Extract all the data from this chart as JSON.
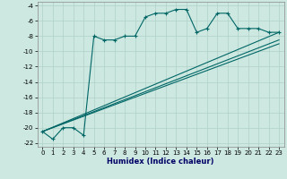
{
  "xlabel": "Humidex (Indice chaleur)",
  "background_color": "#cce8e0",
  "line_color": "#006666",
  "xlim": [
    -0.5,
    23.5
  ],
  "ylim": [
    -22.5,
    -3.5
  ],
  "xticks": [
    0,
    1,
    2,
    3,
    4,
    5,
    6,
    7,
    8,
    9,
    10,
    11,
    12,
    13,
    14,
    15,
    16,
    17,
    18,
    19,
    20,
    21,
    22,
    23
  ],
  "yticks": [
    -22,
    -20,
    -18,
    -16,
    -14,
    -12,
    -10,
    -8,
    -6,
    -4
  ],
  "main_x": [
    0,
    1,
    2,
    3,
    4,
    5,
    6,
    7,
    8,
    9,
    10,
    11,
    12,
    13,
    14,
    15,
    16,
    17,
    18,
    19,
    20,
    21,
    22,
    23
  ],
  "main_y": [
    -20.5,
    -21.5,
    -20,
    -20,
    -21,
    -8,
    -8.5,
    -8.5,
    -8,
    -8,
    -5.5,
    -5,
    -5,
    -4.5,
    -4.5,
    -7.5,
    -7,
    -5,
    -5,
    -7,
    -7,
    -7,
    -7.5,
    -7.5
  ],
  "line1_x": [
    0,
    23
  ],
  "line1_y": [
    -20.5,
    -8.5
  ],
  "line2_x": [
    0,
    23
  ],
  "line2_y": [
    -20.5,
    -7.5
  ],
  "line3_x": [
    0,
    23
  ],
  "line3_y": [
    -20.5,
    -9.0
  ]
}
